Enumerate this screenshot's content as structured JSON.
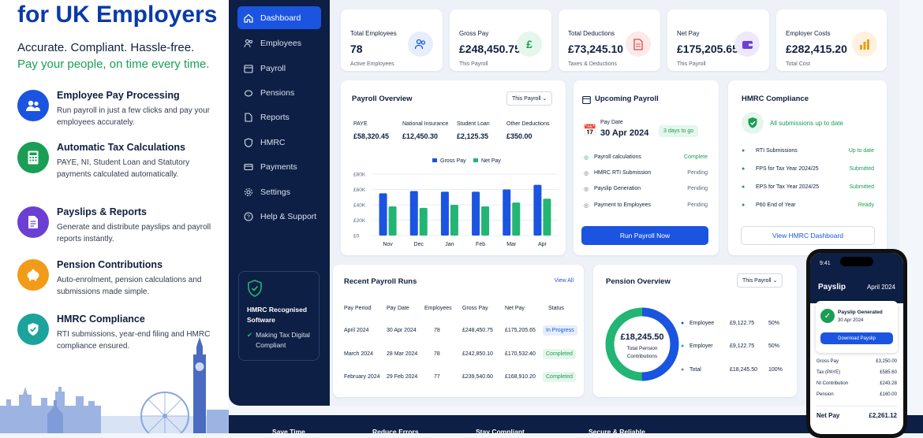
{
  "hero": {
    "title": "for UK Employers",
    "subtitle1": "Accurate. Compliant. Hassle-free.",
    "subtitle2": "Pay your people, on time every time.",
    "features": [
      {
        "title": "Employee Pay Processing",
        "desc": "Run payroll in just a few clicks and pay your employees accurately.",
        "icon": "people-icon",
        "color": "#1b54e0"
      },
      {
        "title": "Automatic Tax Calculations",
        "desc": "PAYE, NI, Student Loan and Statutory payments calculated automatically.",
        "icon": "calculator-icon",
        "color": "#1a9e55"
      },
      {
        "title": "Payslips & Reports",
        "desc": "Generate and distribute payslips and payroll reports instantly.",
        "icon": "document-icon",
        "color": "#6b3fd4"
      },
      {
        "title": "Pension Contributions",
        "desc": "Auto-enrolment, pension calculations and submissions made simple.",
        "icon": "piggy-bank-icon",
        "color": "#f29b18"
      },
      {
        "title": "HMRC Compliance",
        "desc": "RTI submissions, year-end filing and HMRC compliance ensured.",
        "icon": "shield-check-icon",
        "color": "#1ba39c"
      }
    ]
  },
  "nav": [
    "Dashboard",
    "Employees",
    "Payroll",
    "Pensions",
    "Reports",
    "HMRC",
    "Payments",
    "Settings",
    "Help & Support"
  ],
  "sidebar_badge": {
    "title": "HMRC Recognised Software",
    "line": "Making Tax Digital Compliant"
  },
  "stats": [
    {
      "label": "Total Employees",
      "value": "78",
      "sub": "Active Employees",
      "icon": "people-icon",
      "color": "#1b54e0",
      "bg": "#e6eefc"
    },
    {
      "label": "Gross Pay",
      "value": "£248,450.75",
      "sub": "This Payroll",
      "icon": "pound-icon",
      "color": "#1a9e55",
      "bg": "#e5f6ec"
    },
    {
      "label": "Total Deductions",
      "value": "£73,245.10",
      "sub": "Taxes & Deductions",
      "icon": "document-icon",
      "color": "#e04848",
      "bg": "#fde9e9"
    },
    {
      "label": "Net Pay",
      "value": "£175,205.65",
      "sub": "This Payroll",
      "icon": "wallet-icon",
      "color": "#6b3fd4",
      "bg": "#eee8fb"
    },
    {
      "label": "Employer Costs",
      "value": "£282,415.20",
      "sub": "Total Cost",
      "icon": "bar-chart-icon",
      "color": "#f29b18",
      "bg": "#fdf1e0"
    }
  ],
  "overview": {
    "title": "Payroll Overview",
    "filter": "This Payroll",
    "items": [
      {
        "label": "PAYE",
        "value": "£58,320.45"
      },
      {
        "label": "National Insurance",
        "value": "£12,450.30"
      },
      {
        "label": "Student Loan",
        "value": "£2,125.35"
      },
      {
        "label": "Other Deductions",
        "value": "£350.00"
      }
    ]
  },
  "chart_data": {
    "type": "bar",
    "categories": [
      "Nov",
      "Dec",
      "Jan",
      "Feb",
      "Mar",
      "Apr"
    ],
    "series": [
      {
        "name": "Gross Pay",
        "values": [
          55,
          58,
          57,
          57,
          60,
          66
        ]
      },
      {
        "name": "Net Pay",
        "values": [
          38,
          36,
          40,
          38,
          43,
          48
        ]
      }
    ],
    "yticks": [
      "£0",
      "£20K",
      "£40K",
      "£60K",
      "£80K"
    ],
    "ylim": [
      0,
      80
    ],
    "colors": [
      "#1b54e0",
      "#22b573"
    ]
  },
  "upcoming": {
    "title": "Upcoming Payroll",
    "date_label": "Pay Date",
    "date": "30 Apr 2024",
    "badge": "3 days to go",
    "steps": [
      {
        "label": "Payroll calculations",
        "status": "Complete"
      },
      {
        "label": "HMRC RTI Submission",
        "status": "Pending"
      },
      {
        "label": "Payslip Generation",
        "status": "Pending"
      },
      {
        "label": "Payment to Employees",
        "status": "Pending"
      }
    ],
    "button": "Run Payroll Now"
  },
  "compliance": {
    "title": "HMRC Compliance",
    "ok": "All submissions up to date",
    "items": [
      {
        "label": "RTI Submissions",
        "status": "Up to date"
      },
      {
        "label": "FPS for Tax Year 2024/25",
        "status": "Submitted"
      },
      {
        "label": "EPS for Tax Year 2024/25",
        "status": "Submitted"
      },
      {
        "label": "P60 End of Year",
        "status": "Ready"
      }
    ],
    "button": "View HMRC Dashboard"
  },
  "runs": {
    "title": "Recent Payroll Runs",
    "link": "View All",
    "headers": [
      "Pay Period",
      "Pay Date",
      "Employees",
      "Gross Pay",
      "Net Pay",
      "Status"
    ],
    "rows": [
      [
        "April 2024",
        "30 Apr 2024",
        "78",
        "£248,450.75",
        "£175,205.65",
        "In Progress"
      ],
      [
        "March 2024",
        "28 Mar 2024",
        "78",
        "£242,850.10",
        "£170,532.40",
        "Completed"
      ],
      [
        "February 2024",
        "29 Feb 2024",
        "77",
        "£239,540.60",
        "£168,910.20",
        "Completed"
      ]
    ]
  },
  "pension": {
    "title": "Pension Overview",
    "filter": "This Payroll",
    "total": "£18,245.50",
    "total_label": "Total Pension Contributions",
    "items": [
      {
        "label": "Employee",
        "value": "£9,122.75",
        "pct": "50%"
      },
      {
        "label": "Employer",
        "value": "£9,122.75",
        "pct": "50%"
      },
      {
        "label": "Total",
        "value": "£18,245.50",
        "pct": "100%"
      }
    ],
    "share": [
      50,
      50
    ]
  },
  "phone": {
    "time": "9:41",
    "title": "Payslip",
    "date": "April 2024",
    "generated": "Payslip Generated",
    "gen_date": "30 Apr 2024",
    "button": "Download Payslip",
    "lines": [
      {
        "label": "Gross Pay",
        "value": "£3,250.00"
      },
      {
        "label": "Tax (PAYE)",
        "value": "£585.60"
      },
      {
        "label": "NI Contribution",
        "value": "£243.28"
      },
      {
        "label": "Pension",
        "value": "£160.00"
      }
    ],
    "net_label": "Net Pay",
    "net": "£2,261.12"
  },
  "bottom": [
    "Save Time",
    "Reduce Errors",
    "Stay Compliant",
    "Secure & Reliable"
  ]
}
